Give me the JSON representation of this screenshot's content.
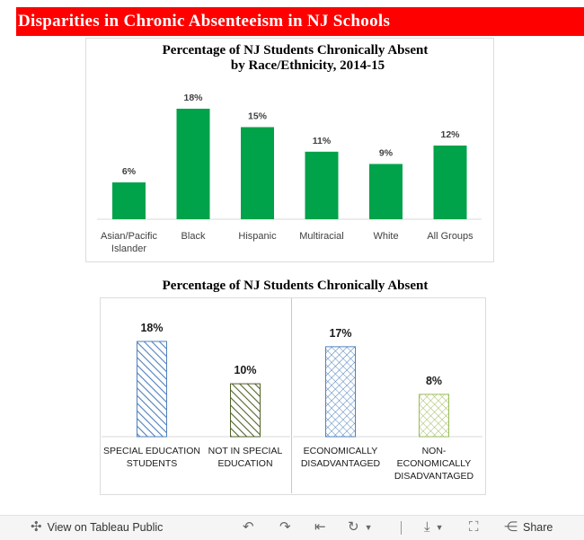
{
  "banner": {
    "title": "Disparities in Chronic Absenteeism in NJ Schools"
  },
  "colors": {
    "banner": "#ff0000",
    "bar_green": "#00a24a",
    "hatch_blue": "#4f81bd",
    "hatch_green": "#4f6228",
    "hatch_lightgreen": "#9bbb59"
  },
  "chart1": {
    "title_line1": "Percentage of NJ Students Chronically Absent",
    "title_line2": "by Race/Ethnicity, 2014-15"
  },
  "chart2": {
    "title": "Percentage of NJ Students Chronically Absent"
  },
  "chart_data": [
    {
      "type": "bar",
      "title": "Percentage of NJ Students Chronically Absent by Race/Ethnicity, 2014-15",
      "categories": [
        "Asian/Pacific Islander",
        "Black",
        "Hispanic",
        "Multiracial",
        "White",
        "All Groups"
      ],
      "category_lines": [
        [
          "Asian/Pacific",
          "Islander"
        ],
        [
          "Black"
        ],
        [
          "Hispanic"
        ],
        [
          "Multiracial"
        ],
        [
          "White"
        ],
        [
          "All Groups"
        ]
      ],
      "values": [
        6,
        18,
        15,
        11,
        9,
        12
      ],
      "labels": [
        "6%",
        "18%",
        "15%",
        "11%",
        "9%",
        "12%"
      ],
      "ylim": [
        0,
        20
      ],
      "grid": false
    },
    {
      "type": "bar",
      "title": "Percentage of NJ Students Chronically Absent",
      "categories": [
        "SPECIAL EDUCATION STUDENTS",
        "NOT IN SPECIAL EDUCATION",
        "ECONOMICALLY DISADVANTAGED",
        "NON-ECONOMICALLY DISADVANTAGED"
      ],
      "category_lines": [
        [
          "SPECIAL EDUCATION",
          "STUDENTS"
        ],
        [
          "NOT IN SPECIAL",
          "EDUCATION"
        ],
        [
          "ECONOMICALLY",
          "DISADVANTAGED"
        ],
        [
          "NON-",
          "ECONOMICALLY",
          "DISADVANTAGED"
        ]
      ],
      "values": [
        18,
        10,
        17,
        8
      ],
      "labels": [
        "18%",
        "10%",
        "17%",
        "8%"
      ],
      "patterns": [
        "diagonal-blue",
        "diagonal-green",
        "crosshatch-blue",
        "crosshatch-lightgreen"
      ],
      "ylim": [
        0,
        24
      ],
      "grid": false
    }
  ],
  "toolbar": {
    "view_label": "View on Tableau Public",
    "share_label": "Share"
  }
}
